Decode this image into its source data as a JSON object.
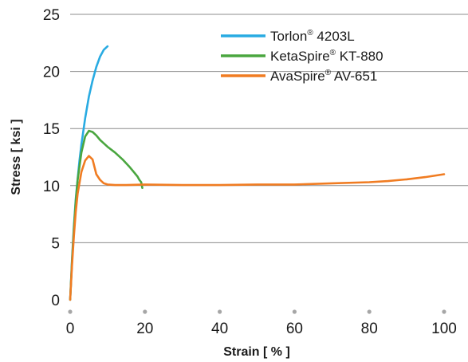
{
  "chart_data": {
    "type": "line",
    "title": "",
    "xlabel": "Strain [ % ]",
    "ylabel": "Stress [ ksi ]",
    "xlim": [
      0,
      100
    ],
    "ylim": [
      0,
      25
    ],
    "xticks": [
      0,
      20,
      40,
      60,
      80,
      100
    ],
    "yticks": [
      0,
      5,
      10,
      15,
      20,
      25
    ],
    "grid": "horizontal",
    "legend": "top-right",
    "series": [
      {
        "name": "Torlon® 4203L",
        "name_main": "Torlon",
        "name_rest": " 4203L",
        "color": "#29abe2",
        "x": [
          0,
          0.5,
          1,
          1.5,
          2,
          2.5,
          3,
          4,
          5,
          6,
          7,
          8,
          9,
          10
        ],
        "y": [
          0,
          3.5,
          6.5,
          8.8,
          10.6,
          12.2,
          13.6,
          15.9,
          17.8,
          19.2,
          20.4,
          21.3,
          21.9,
          22.2
        ]
      },
      {
        "name": "KetaSpire® KT-880",
        "name_main": "KetaSpire",
        "name_rest": " KT-880",
        "color": "#4aa63f",
        "x": [
          0,
          0.5,
          1,
          1.5,
          2,
          3,
          4,
          5,
          6,
          7,
          8,
          10,
          12,
          14,
          16,
          17,
          17.5,
          18,
          18.5,
          19,
          19.3
        ],
        "y": [
          0,
          3.3,
          6.2,
          8.6,
          10.5,
          12.9,
          14.3,
          14.8,
          14.7,
          14.4,
          14.0,
          13.4,
          12.9,
          12.3,
          11.6,
          11.2,
          11.0,
          10.8,
          10.5,
          10.3,
          9.8
        ]
      },
      {
        "name": "AvaSpire® AV-651",
        "name_main": "AvaSpire",
        "name_rest": " AV-651",
        "color": "#f07c22",
        "x": [
          0,
          0.5,
          1,
          1.5,
          2,
          3,
          4,
          5,
          6,
          7,
          8,
          9,
          10,
          12,
          15,
          20,
          30,
          40,
          50,
          60,
          70,
          80,
          85,
          90,
          95,
          100
        ],
        "y": [
          0,
          3.0,
          5.6,
          7.7,
          9.3,
          11.2,
          12.2,
          12.6,
          12.3,
          11.0,
          10.5,
          10.2,
          10.1,
          10.05,
          10.05,
          10.1,
          10.05,
          10.05,
          10.1,
          10.1,
          10.2,
          10.3,
          10.4,
          10.55,
          10.75,
          11.0
        ]
      }
    ]
  }
}
